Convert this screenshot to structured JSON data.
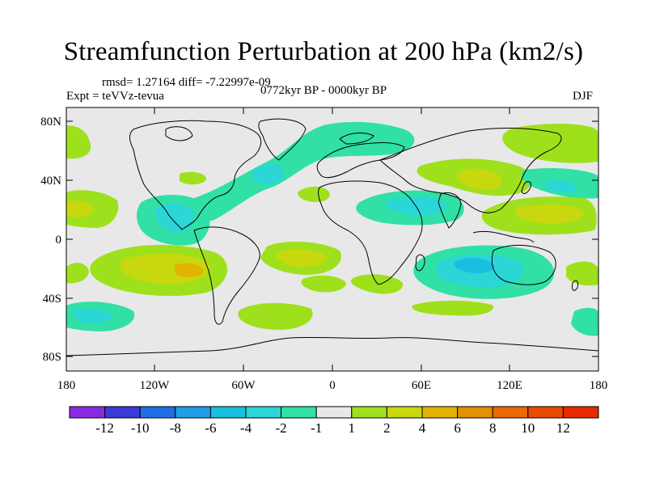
{
  "title": "Streamfunction Perturbation at 200 hPa (km2/s)",
  "stats": "rmsd= 1.27164 diff= -7.22997e-09",
  "experiment": "Expt = teVVz-tevua",
  "period": "0772kyr BP - 0000kyr BP",
  "season": "DJF",
  "lat_ticks": [
    "80N",
    "40N",
    "0",
    "40S",
    "80S"
  ],
  "lon_ticks": [
    "180",
    "120W",
    "60W",
    "0",
    "60E",
    "120E",
    "180"
  ],
  "colorbar": {
    "labels": [
      "-12",
      "-10",
      "-8",
      "-6",
      "-4",
      "-2",
      "-1",
      "1",
      "2",
      "4",
      "6",
      "8",
      "10",
      "12"
    ],
    "colors": [
      "#8a2be2",
      "#3a3ad8",
      "#1e6ee6",
      "#1e9ee6",
      "#18bfe0",
      "#2ad6d6",
      "#30e0a6",
      "#e8e8e8",
      "#9fe01c",
      "#c8d80e",
      "#e0b400",
      "#e09000",
      "#e86a00",
      "#e84a00",
      "#e82a00"
    ]
  },
  "colors": {
    "land_outline": "#000000",
    "neutral": "#e8e8e8"
  }
}
